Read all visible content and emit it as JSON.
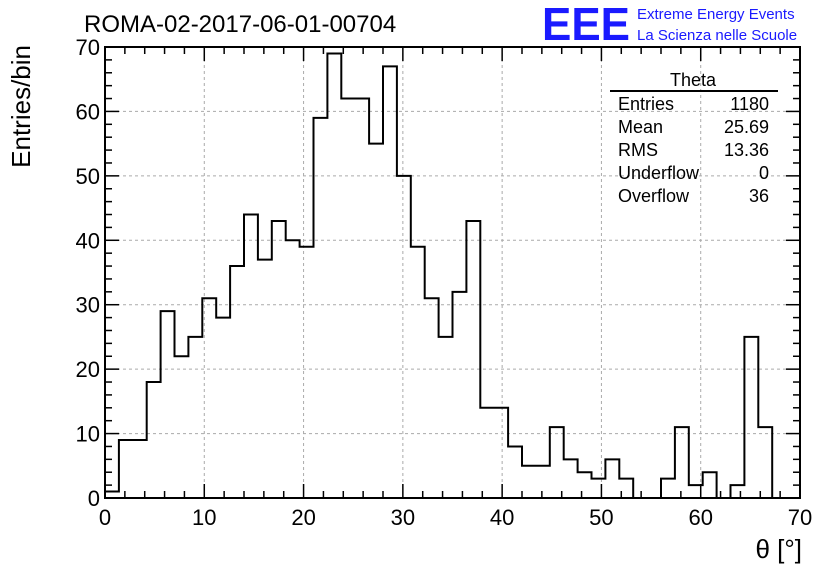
{
  "header": {
    "title": "ROMA-02-2017-06-01-00704",
    "logo_mark": "EEE",
    "logo_line1": "Extreme Energy Events",
    "logo_line2": "La Scienza nelle Scuole"
  },
  "stats": {
    "name": "Theta",
    "rows": [
      {
        "label": "Entries",
        "value": "1180"
      },
      {
        "label": "Mean",
        "value": "25.69"
      },
      {
        "label": "RMS",
        "value": "13.36"
      },
      {
        "label": "Underflow",
        "value": "0"
      },
      {
        "label": "Overflow",
        "value": "36"
      }
    ]
  },
  "colors": {
    "line": "#000000",
    "grid": "#aaaaaa",
    "logo": "#1a1aff"
  },
  "chart_data": {
    "type": "histogram",
    "title": "ROMA-02-2017-06-01-00704",
    "xlabel": "θ [°]",
    "ylabel": "Entries/bin",
    "xlim": [
      0,
      70
    ],
    "ylim": [
      0,
      70
    ],
    "grid": true,
    "xticks": [
      0,
      10,
      20,
      30,
      40,
      50,
      60,
      70
    ],
    "yticks": [
      0,
      10,
      20,
      30,
      40,
      50,
      60,
      70
    ],
    "bin_start": 0,
    "bin_width": 1.4,
    "values": [
      1,
      9,
      9,
      18,
      29,
      22,
      25,
      31,
      28,
      36,
      44,
      37,
      43,
      40,
      39,
      59,
      69,
      62,
      62,
      55,
      67,
      50,
      39,
      31,
      25,
      32,
      43,
      14,
      14,
      8,
      5,
      5,
      11,
      6,
      4,
      3,
      6,
      3,
      0,
      0,
      3,
      11,
      2,
      4,
      0,
      2,
      25,
      11
    ]
  }
}
